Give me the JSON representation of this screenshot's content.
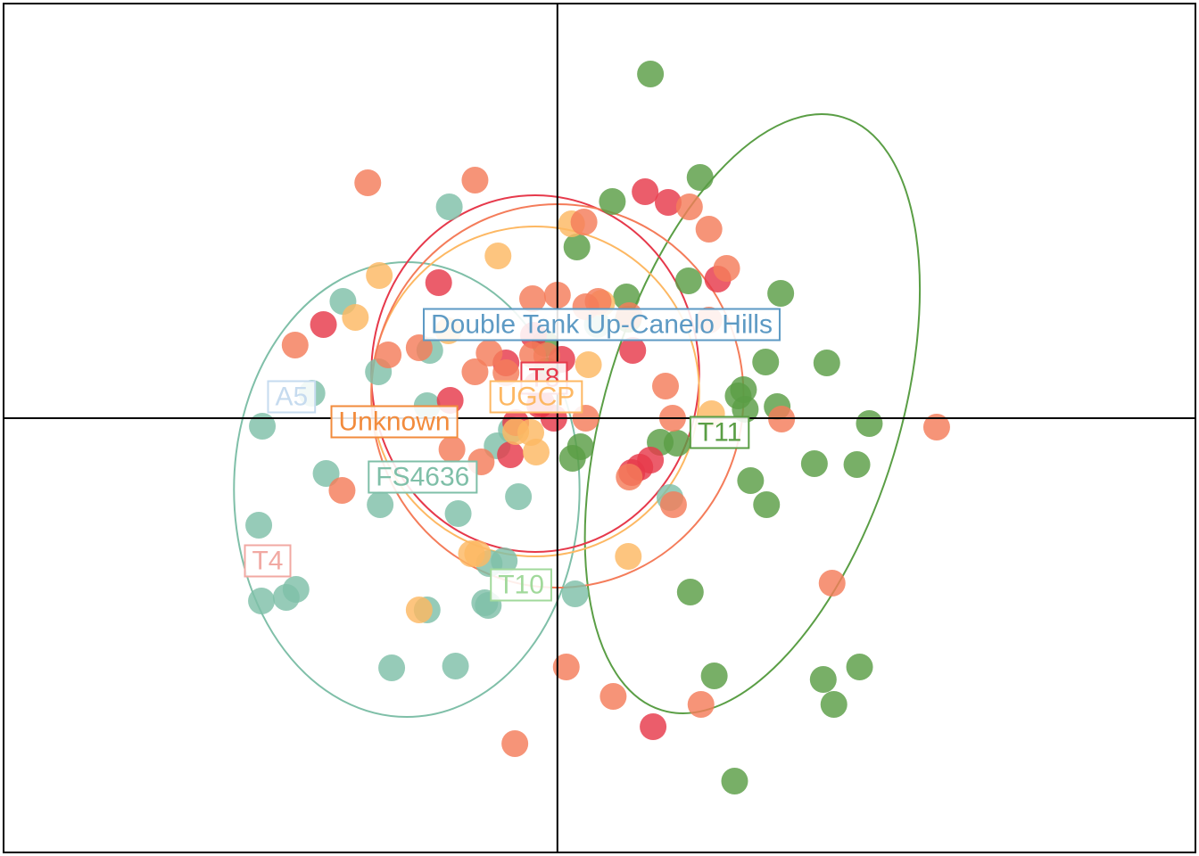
{
  "chart_data": {
    "type": "scatter",
    "xlim": [
      -6.25,
      7.2
    ],
    "ylim": [
      -4.87,
      4.65
    ],
    "grid": false,
    "axes_lines": {
      "x": 0,
      "y": 0
    },
    "series": [
      {
        "name": "A5",
        "color": "#c6dbef",
        "points": []
      },
      {
        "name": "Double Tank Up-Canelo Hills",
        "color": "#6baed6",
        "points": []
      },
      {
        "name": "FS4636",
        "color": "#7fbfa8",
        "points": [
          [
            -1.22,
            2.37
          ],
          [
            -2.42,
            1.31
          ],
          [
            -2.02,
            0.52
          ],
          [
            -1.44,
            0.76
          ],
          [
            -3.33,
            -0.09
          ],
          [
            -2.61,
            -0.62
          ],
          [
            -2.0,
            -0.97
          ],
          [
            -1.12,
            -1.07
          ],
          [
            -3.37,
            -1.2
          ],
          [
            -2.95,
            -1.92
          ],
          [
            -3.34,
            -2.05
          ],
          [
            -3.06,
            -2.01
          ],
          [
            -0.78,
            -2.1
          ],
          [
            -0.82,
            -2.07
          ],
          [
            -1.87,
            -2.8
          ],
          [
            -1.15,
            -2.78
          ],
          [
            -0.44,
            -0.88
          ],
          [
            -0.6,
            -1.6
          ],
          [
            -1.47,
            0.14
          ],
          [
            -0.68,
            -0.31
          ],
          [
            -0.52,
            -0.13
          ],
          [
            0.2,
            -1.97
          ],
          [
            -1.47,
            -2.15
          ],
          [
            -0.77,
            -1.63
          ],
          [
            1.27,
            -0.89
          ],
          [
            0.45,
            1.05
          ],
          [
            -2.77,
            0.28
          ]
        ]
      },
      {
        "name": "T10",
        "color": "#a1d99b",
        "points": []
      },
      {
        "name": "T11",
        "color": "#5a9e45",
        "points": [
          [
            1.05,
            3.86
          ],
          [
            1.61,
            2.7
          ],
          [
            1.48,
            1.54
          ],
          [
            2.52,
            1.4
          ],
          [
            3.04,
            0.62
          ],
          [
            2.04,
            0.25
          ],
          [
            2.1,
            0.32
          ],
          [
            2.35,
            0.63
          ],
          [
            0.78,
            1.36
          ],
          [
            0.8,
            1.11
          ],
          [
            2.48,
            0.13
          ],
          [
            3.52,
            -0.06
          ],
          [
            2.18,
            -0.7
          ],
          [
            2.36,
            -0.97
          ],
          [
            2.9,
            -0.51
          ],
          [
            3.38,
            -0.52
          ],
          [
            1.5,
            -1.95
          ],
          [
            3.0,
            -2.93
          ],
          [
            3.41,
            -2.79
          ],
          [
            1.77,
            -2.89
          ],
          [
            3.12,
            -3.21
          ],
          [
            2.0,
            -4.07
          ],
          [
            0.22,
            1.92
          ],
          [
            1.16,
            -0.27
          ],
          [
            1.35,
            -0.28
          ],
          [
            -0.14,
            0.84
          ],
          [
            0.26,
            -0.32
          ],
          [
            0.17,
            -0.45
          ],
          [
            2.12,
            0.1
          ],
          [
            -0.12,
            0.53
          ],
          [
            0.62,
            2.43
          ]
        ]
      },
      {
        "name": "T4",
        "color": "#f1a9a3",
        "points": []
      },
      {
        "name": "T8",
        "color": "#e6394b",
        "points": [
          [
            0.99,
            2.54
          ],
          [
            1.25,
            2.42
          ],
          [
            1.81,
            1.56
          ],
          [
            -1.34,
            1.52
          ],
          [
            -2.64,
            1.05
          ],
          [
            -0.27,
            0.93
          ],
          [
            -0.58,
            0.62
          ],
          [
            -1.21,
            0.2
          ],
          [
            0.85,
            0.76
          ],
          [
            -0.47,
            -0.05
          ],
          [
            0.05,
            0.66
          ],
          [
            -0.04,
            0.0
          ],
          [
            -0.2,
            0.15
          ],
          [
            -0.53,
            -0.41
          ],
          [
            1.05,
            -0.47
          ],
          [
            0.93,
            -0.55
          ],
          [
            0.84,
            -0.61
          ],
          [
            1.08,
            -3.46
          ],
          [
            -0.18,
            0.17
          ],
          [
            -0.23,
            0.37
          ]
        ]
      },
      {
        "name": "UGCP",
        "color": "#fdb863",
        "points": [
          [
            -0.67,
            1.82
          ],
          [
            -2.01,
            1.6
          ],
          [
            -2.28,
            1.13
          ],
          [
            0.16,
            2.18
          ],
          [
            -1.23,
            0.98
          ],
          [
            0.5,
            1.29
          ],
          [
            0.35,
            0.6
          ],
          [
            -0.3,
            -0.16
          ],
          [
            -0.24,
            -0.38
          ],
          [
            -0.97,
            -1.52
          ],
          [
            -0.9,
            -1.52
          ],
          [
            -1.56,
            -2.15
          ],
          [
            0.8,
            -1.55
          ],
          [
            1.74,
            0.05
          ],
          [
            -0.47,
            -0.15
          ]
        ]
      },
      {
        "name": "Unknown",
        "color": "#f47c5a",
        "points": [
          [
            -2.14,
            2.64
          ],
          [
            -0.93,
            2.67
          ],
          [
            1.49,
            2.37
          ],
          [
            1.71,
            2.12
          ],
          [
            1.91,
            1.68
          ],
          [
            -1.56,
            0.79
          ],
          [
            -1.91,
            0.71
          ],
          [
            -2.96,
            0.82
          ],
          [
            -0.77,
            0.73
          ],
          [
            -0.93,
            0.52
          ],
          [
            -0.58,
            0.51
          ],
          [
            -0.28,
            0.71
          ],
          [
            -0.12,
            0.7
          ],
          [
            0.32,
            1.25
          ],
          [
            0.81,
            1.15
          ],
          [
            1.22,
            0.36
          ],
          [
            1.71,
            1.1
          ],
          [
            0.32,
            0.0
          ],
          [
            1.31,
            -0.97
          ],
          [
            1.3,
            0.0
          ],
          [
            2.53,
            -0.01
          ],
          [
            4.28,
            -0.1
          ],
          [
            -1.19,
            -0.35
          ],
          [
            -0.86,
            -0.49
          ],
          [
            -2.43,
            -0.81
          ],
          [
            0.81,
            -0.66
          ],
          [
            0.63,
            -3.12
          ],
          [
            1.62,
            -3.21
          ],
          [
            0.1,
            -2.79
          ],
          [
            -0.48,
            -3.65
          ],
          [
            3.1,
            -1.85
          ],
          [
            -0.28,
            1.34
          ],
          [
            0.0,
            1.38
          ],
          [
            0.46,
            1.31
          ],
          [
            0.3,
            2.2
          ]
        ]
      }
    ],
    "ellipses": [
      {
        "name": "FS4636",
        "color": "#7fbfa8",
        "cx": -1.7,
        "cy": -0.8,
        "rx": 1.95,
        "ry": 2.55,
        "rot": 0
      },
      {
        "name": "T11",
        "color": "#5a9e45",
        "cx": 2.2,
        "cy": 0.05,
        "rx": 3.5,
        "ry": 1.65,
        "rot": -73
      },
      {
        "name": "T8",
        "color": "#e6394b",
        "cx": -0.25,
        "cy": 0.5,
        "rx": 1.85,
        "ry": 2.0,
        "rot": 0
      },
      {
        "name": "UGCP",
        "color": "#fdb863",
        "cx": -0.25,
        "cy": 0.3,
        "rx": 1.85,
        "ry": 1.85,
        "rot": 0
      },
      {
        "name": "Unknown",
        "color": "#f47c5a",
        "cx": 0.0,
        "cy": 0.25,
        "rx": 2.1,
        "ry": 2.15,
        "rot": 0
      }
    ],
    "group_labels": [
      {
        "text": "Double Tank Up-Canelo Hills",
        "color": "#5d9ac4",
        "x": 0.5,
        "y": 1.05
      },
      {
        "text": "T8",
        "color": "#e6394b",
        "x": -0.15,
        "y": 0.45
      },
      {
        "text": "UGCP",
        "color": "#fdb863",
        "x": -0.24,
        "y": 0.24
      },
      {
        "text": "A5",
        "color": "#c6dbef",
        "x": -3.0,
        "y": 0.24
      },
      {
        "text": "Unknown",
        "color": "#f28b3c",
        "x": -1.84,
        "y": -0.04
      },
      {
        "text": "T11",
        "color": "#5a9e45",
        "x": 1.83,
        "y": -0.16
      },
      {
        "text": "FS4636",
        "color": "#7fbfa8",
        "x": -1.52,
        "y": -0.66
      },
      {
        "text": "T4",
        "color": "#f1a9a3",
        "x": -3.27,
        "y": -1.6
      },
      {
        "text": "T10",
        "color": "#a1d99b",
        "x": -0.41,
        "y": -1.87
      }
    ]
  }
}
